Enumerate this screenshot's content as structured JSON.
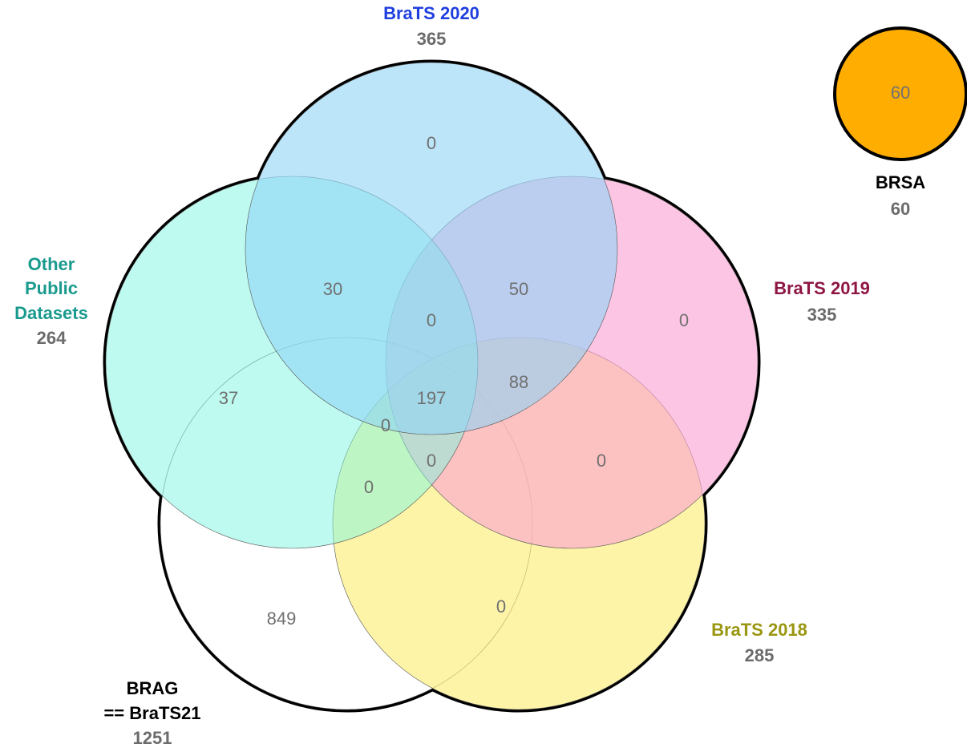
{
  "sets": {
    "brag": {
      "name_line1": "BRAG",
      "name_line2": "== BraTS21",
      "total": "1251",
      "color": "#ffffff",
      "label_color": "#000000"
    },
    "other": {
      "name_line1": "Other",
      "name_line2": "Public",
      "name_line3": "Datasets",
      "total": "264",
      "color": "#7ef5e0",
      "label_color": "#1a9a8e"
    },
    "brats2020": {
      "name": "BraTS 2020",
      "total": "365",
      "color": "#8fd3f7",
      "label_color": "#1f3fe0"
    },
    "brats2019": {
      "name": "BraTS 2019",
      "total": "335",
      "color": "#fb9fd2",
      "label_color": "#8e1645"
    },
    "brats2018": {
      "name": "BraTS 2018",
      "total": "285",
      "color": "#fbed6e",
      "label_color": "#9a9610"
    },
    "brsa": {
      "name": "BRSA",
      "total": "60",
      "count": "60",
      "color": "#ffad00",
      "label_color": "#000000"
    }
  },
  "regions": {
    "brats2020_only": "0",
    "other_brats2020": "30",
    "brats2020_brats2019": "50",
    "brats2019_only": "0",
    "center_upper": "0",
    "other_only": "37",
    "core": "197",
    "brats2019_brats2018": "88",
    "left_mid": "0",
    "center_lower": "0",
    "brats2018_brats2019_lower": "0",
    "other_brats2018": "0",
    "brag_only": "849",
    "brats2018_only": "0"
  }
}
